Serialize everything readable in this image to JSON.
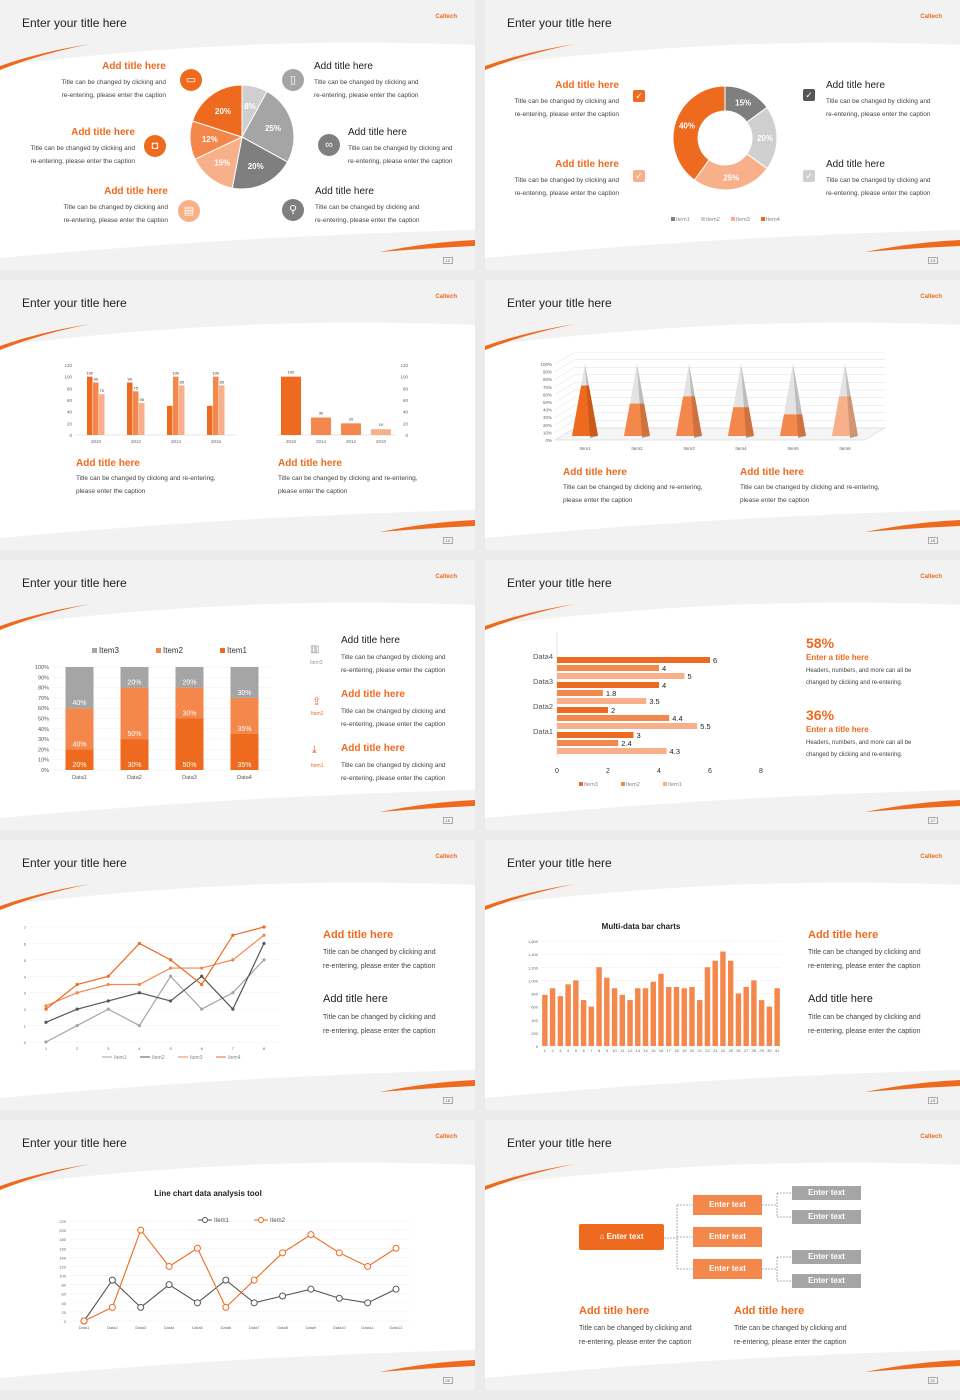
{
  "common": {
    "slide_title": "Enter your title here",
    "brand": "Caltech"
  },
  "slides": [
    {
      "page": "12",
      "left_items": [
        {
          "title": "Add title here",
          "caption1": "Title can be changed by clicking and",
          "caption2": "re-entering, please enter the caption",
          "icon": "monitor-icon"
        },
        {
          "title": "Add title here",
          "caption1": "Title can be changed by clicking and",
          "caption2": "re-entering, please enter the caption",
          "icon": "car-icon"
        },
        {
          "title": "Add title here",
          "caption1": "Title can be changed by clicking and",
          "caption2": "re-entering, please enter the caption",
          "icon": "book-icon"
        }
      ],
      "right_items": [
        {
          "title": "Add title here",
          "caption1": "Title can be changed by clicking and",
          "caption2": "re-entering, please enter the caption",
          "icon": "phone-icon"
        },
        {
          "title": "Add title here",
          "caption1": "Title can be changed by clicking and",
          "caption2": "re-entering, please enter the caption",
          "icon": "binoculars-icon"
        },
        {
          "title": "Add title here",
          "caption1": "Title can be changed by clicking and",
          "caption2": "re-entering, please enter the caption",
          "icon": "bicycle-icon"
        }
      ]
    },
    {
      "page": "13",
      "left_items": [
        {
          "title": "Add title here",
          "caption1": "Title can be changed by clicking and",
          "caption2": "re-entering, please enter the caption"
        },
        {
          "title": "Add title here",
          "caption1": "Title can be changed by clicking and",
          "caption2": "re-entering, please enter the caption"
        }
      ],
      "right_items": [
        {
          "title": "Add title here",
          "caption1": "Title can be changed by clicking and",
          "caption2": "re-entering, please enter the caption"
        },
        {
          "title": "Add title here",
          "caption1": "Title can be changed by clicking and",
          "caption2": "re-entering, please enter the caption"
        }
      ]
    },
    {
      "page": "14",
      "items": [
        {
          "title": "Add title here",
          "caption1": "Title can be changed by clicking and re-entering,",
          "caption2": "please enter the caption"
        },
        {
          "title": "Add title here",
          "caption1": "Title can be changed by clicking and re-entering,",
          "caption2": "please enter the caption"
        }
      ]
    },
    {
      "page": "15",
      "items": [
        {
          "title": "Add title here",
          "caption1": "Title can be changed by clicking and re-entering,",
          "caption2": "please enter the caption"
        },
        {
          "title": "Add title here",
          "caption1": "Title can be changed by clicking and re-entering,",
          "caption2": "please enter the caption"
        }
      ]
    },
    {
      "page": "16",
      "items": [
        {
          "title": "Add title here",
          "caption1": "Title can be changed by clicking and",
          "caption2": "re-entering, please enter the caption",
          "icon_label": "Item3"
        },
        {
          "title": "Add title here",
          "caption1": "Title can be changed by clicking and",
          "caption2": "re-entering, please enter the caption",
          "icon_label": "Item2"
        },
        {
          "title": "Add title here",
          "caption1": "Title can be changed by clicking and",
          "caption2": "re-entering, please enter the caption",
          "icon_label": "Item1"
        }
      ]
    },
    {
      "page": "17",
      "stats": [
        {
          "percent": "58%",
          "title": "Enter a title here",
          "caption1": "Headers, numbers, and more can all be",
          "caption2": "changed by clicking and re-entering."
        },
        {
          "percent": "36%",
          "title": "Enter a title here",
          "caption1": "Headers, numbers, and more can all be",
          "caption2": "changed by clicking and re-entering."
        }
      ]
    },
    {
      "page": "18",
      "items": [
        {
          "title": "Add title here",
          "caption1": "Title can be changed by clicking and",
          "caption2": "re-entering, please enter the caption"
        },
        {
          "title": "Add title here",
          "caption1": "Title can be changed by clicking and",
          "caption2": "re-entering, please enter the caption"
        }
      ]
    },
    {
      "page": "19",
      "items": [
        {
          "title": "Add title here",
          "caption1": "Title can be changed by clicking and",
          "caption2": "re-entering, please enter the caption"
        },
        {
          "title": "Add title here",
          "caption1": "Title can be changed by clicking and",
          "caption2": "re-entering, please enter the caption"
        }
      ]
    },
    {
      "page": "20"
    },
    {
      "page": "21",
      "flow": {
        "root": "Enter text",
        "middle": [
          "Enter text",
          "Enter text",
          "Enter text"
        ],
        "right": [
          "Enter text",
          "Enter text",
          "Enter text",
          "Enter text"
        ]
      },
      "items": [
        {
          "title": "Add title here",
          "caption1": "Title can be changed by clicking and",
          "caption2": "re-entering, please enter the caption"
        },
        {
          "title": "Add title here",
          "caption1": "Title can be changed by clicking and",
          "caption2": "re-entering, please enter the caption"
        }
      ]
    }
  ],
  "colors": {
    "orange": "#ee6a1f",
    "orange_mid": "#f4874b",
    "orange_light": "#f7b08a",
    "gray_dark": "#7f7f7f",
    "gray_mid": "#a5a5a5",
    "gray_light": "#cfcfcf"
  },
  "chart_data": [
    {
      "type": "pie",
      "slide": 1,
      "labels": [
        "8%",
        "25%",
        "20%",
        "15%",
        "12%",
        "20%"
      ],
      "values": [
        8,
        25,
        20,
        15,
        12,
        20
      ]
    },
    {
      "type": "pie",
      "slide": 2,
      "donut": true,
      "series_names": [
        "Item1",
        "Item2",
        "Item3",
        "Item4"
      ],
      "labels": [
        "15%",
        "20%",
        "25%",
        "40%"
      ],
      "values": [
        15,
        20,
        25,
        40
      ]
    },
    {
      "type": "bar",
      "slide": 3,
      "categories": [
        "2010",
        "2012",
        "2014",
        "2016"
      ],
      "series": [
        {
          "values": [
            100,
            90,
            50,
            50
          ]
        },
        {
          "values": [
            90,
            75,
            100,
            100
          ]
        },
        {
          "values": [
            70,
            55,
            85,
            85
          ]
        }
      ],
      "data_labels": [
        [
          "100",
          "90",
          "70"
        ],
        [
          "90",
          "75",
          "55"
        ],
        [
          "",
          "100",
          "85"
        ],
        [
          "",
          "100",
          "85"
        ]
      ],
      "ylim": [
        0,
        120
      ],
      "yticks": [
        0,
        20,
        40,
        60,
        80,
        100,
        120
      ]
    },
    {
      "type": "bar",
      "slide": 3,
      "categories": [
        "2016",
        "2014",
        "2012",
        "2010"
      ],
      "values": [
        100,
        30,
        20,
        10
      ],
      "ylim": [
        0,
        120
      ],
      "yticks": [
        0,
        20,
        40,
        60,
        80,
        100,
        120
      ]
    },
    {
      "type": "bar",
      "slide": 4,
      "subtype": "3d-cone",
      "categories": [
        "Item1",
        "Item2",
        "Item3",
        "Item4",
        "Item5",
        "Item6"
      ],
      "values": [
        70,
        45,
        55,
        40,
        30,
        55
      ],
      "yticks": [
        "0%",
        "10%",
        "20%",
        "30%",
        "40%",
        "50%",
        "60%",
        "70%",
        "80%",
        "90%",
        "100%"
      ]
    },
    {
      "type": "bar",
      "slide": 5,
      "stacked": "percent",
      "categories": [
        "Data1",
        "Data2",
        "Data3",
        "Data4"
      ],
      "series": [
        {
          "name": "Item1",
          "values": [
            20,
            30,
            50,
            35
          ]
        },
        {
          "name": "Item2",
          "values": [
            40,
            50,
            30,
            35
          ]
        },
        {
          "name": "Item3",
          "values": [
            40,
            20,
            20,
            30
          ]
        }
      ],
      "yticks": [
        "0%",
        "10%",
        "20%",
        "30%",
        "40%",
        "50%",
        "60%",
        "70%",
        "80%",
        "90%",
        "100%"
      ],
      "legend": "top"
    },
    {
      "type": "bar",
      "slide": 6,
      "orientation": "horizontal",
      "categories": [
        "Data1",
        "Data2",
        "Data3",
        "Data4"
      ],
      "series": [
        {
          "name": "Item3",
          "values": [
            3,
            2,
            4,
            6
          ]
        },
        {
          "name": "Item2",
          "values": [
            2.4,
            4.4,
            1.8,
            4
          ]
        },
        {
          "name": "Item1",
          "values": [
            4.3,
            5.5,
            3.5,
            5
          ]
        }
      ],
      "xlim": [
        0,
        8
      ],
      "xticks": [
        0,
        2,
        4,
        6,
        8
      ],
      "legend": "bottom"
    },
    {
      "type": "line",
      "slide": 7,
      "x": [
        1,
        2,
        3,
        4,
        5,
        6,
        7,
        8
      ],
      "series": [
        {
          "name": "Item1",
          "values": [
            0,
            1,
            2,
            1,
            4,
            2,
            3,
            5
          ]
        },
        {
          "name": "Item2",
          "values": [
            1.2,
            2,
            2.5,
            3,
            2.5,
            4,
            2,
            6
          ]
        },
        {
          "name": "Item3",
          "values": [
            2.2,
            3,
            3.5,
            3.5,
            4.5,
            4.5,
            5,
            6.5
          ]
        },
        {
          "name": "Item4",
          "values": [
            2,
            3.5,
            4,
            6,
            5,
            3.5,
            6.5,
            7
          ]
        }
      ],
      "ylim": [
        0,
        7
      ],
      "yticks": [
        0,
        1,
        2,
        3,
        4,
        5,
        6,
        7
      ],
      "legend": "bottom"
    },
    {
      "type": "bar",
      "slide": 8,
      "title": "Multi-data bar charts",
      "categories": [
        "1",
        "2",
        "3",
        "4",
        "5",
        "6",
        "7",
        "8",
        "9",
        "10",
        "11",
        "12",
        "13",
        "14",
        "15",
        "16",
        "17",
        "18",
        "19",
        "20",
        "21",
        "22",
        "23",
        "24",
        "25",
        "26",
        "27",
        "28",
        "29",
        "30",
        "31"
      ],
      "values": [
        780,
        880,
        760,
        940,
        1000,
        700,
        600,
        1200,
        1040,
        880,
        780,
        700,
        880,
        880,
        980,
        1100,
        900,
        900,
        880,
        900,
        700,
        1200,
        1300,
        1440,
        1300,
        800,
        900,
        1000,
        700,
        600,
        880
      ],
      "ylim": [
        0,
        1600
      ],
      "yticks": [
        "0",
        "200",
        "400",
        "600",
        "800",
        "1,000",
        "1,200",
        "1,400",
        "1,600"
      ]
    },
    {
      "type": "line",
      "slide": 9,
      "title": "Line chart data analysis tool",
      "categories": [
        "Data1",
        "Data2",
        "Data3",
        "Data4",
        "Data5",
        "Data6",
        "Data7",
        "Data8",
        "Data9",
        "Data10",
        "Data11",
        "Data12"
      ],
      "series": [
        {
          "name": "Item1",
          "values": [
            0,
            90,
            30,
            80,
            40,
            90,
            40,
            55,
            70,
            50,
            40,
            70
          ]
        },
        {
          "name": "Item2",
          "values": [
            0,
            30,
            200,
            120,
            160,
            30,
            90,
            150,
            190,
            150,
            120,
            160
          ]
        }
      ],
      "ylim": [
        0,
        220
      ],
      "yticks": [
        0,
        20,
        40,
        60,
        80,
        100,
        120,
        140,
        160,
        180,
        200,
        220
      ],
      "legend": "top"
    }
  ]
}
